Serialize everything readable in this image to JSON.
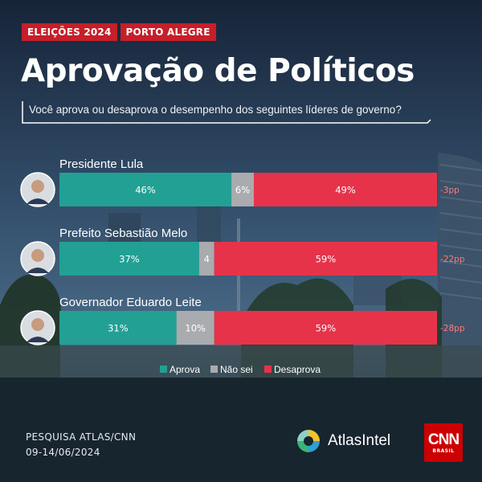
{
  "tags": [
    "ELEIÇÕES 2024",
    "PORTO ALEGRE"
  ],
  "title": "Aprovação de Políticos",
  "subtitle": "Você aprova ou desaprova o desempenho dos seguintes líderes de governo?",
  "colors": {
    "aprova": "#22a094",
    "nao_sei": "#a9abae",
    "desaprova": "#e6334a",
    "net": "#ff7b7b",
    "tag": "#c51f2a"
  },
  "chart_data": {
    "type": "bar",
    "orientation": "horizontal-stacked-100",
    "categories": [
      "Presidente Lula",
      "Prefeito Sebastião Melo",
      "Governador Eduardo Leite"
    ],
    "series": [
      {
        "name": "Aprova",
        "values": [
          46,
          37,
          31
        ],
        "labels": [
          "46%",
          "37%",
          "31%"
        ]
      },
      {
        "name": "Não sei",
        "values": [
          6,
          4,
          10
        ],
        "labels": [
          "6%",
          "4",
          "10%"
        ]
      },
      {
        "name": "Desaprova",
        "values": [
          49,
          59,
          59
        ],
        "labels": [
          "49%",
          "59%",
          "59%"
        ]
      }
    ],
    "net": [
      "-3pp",
      "-22pp",
      "-28pp"
    ],
    "legend": {
      "position": "bottom",
      "entries": [
        "Aprova",
        "Não sei",
        "Desaprova"
      ]
    }
  },
  "footer": {
    "source": "PESQUISA ATLAS/CNN",
    "dates": "09-14/06/2024"
  },
  "logos": {
    "atlas": "AtlasIntel",
    "cnn_top": "CNN",
    "cnn_bottom": "BRASIL"
  }
}
